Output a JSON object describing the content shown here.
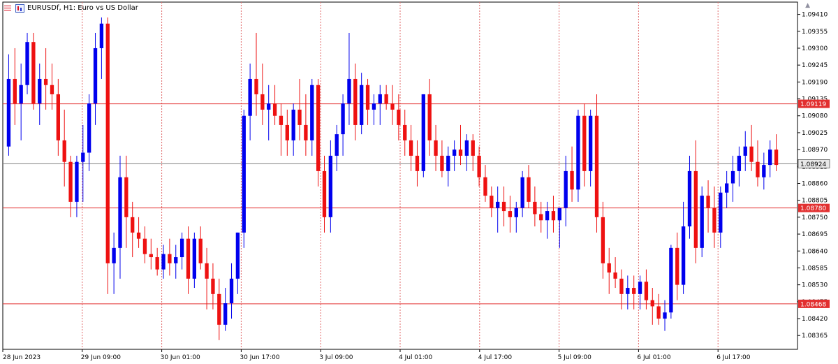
{
  "window": {
    "title": "EURUSDf, H1:  Euro vs US Dollar",
    "icons": [
      "candle-menu-icon",
      "chart-properties-icon",
      "scroll-end-arrow-icon"
    ]
  },
  "colors": {
    "bull": "#0000ee",
    "bear": "#ee1111",
    "grid": "#e26a6a",
    "level": "#e23030",
    "current": "#808080",
    "axis": "#000000"
  },
  "chart_data": {
    "type": "candlestick",
    "symbol": "EURUSDf",
    "timeframe": "H1",
    "ylim": [
      1.0832,
      1.0945
    ],
    "price_ticks": [
      "1.09410",
      "1.09355",
      "1.09300",
      "1.09245",
      "1.09190",
      "1.09135",
      "1.09080",
      "1.09025",
      "1.08970",
      "1.08915",
      "1.08860",
      "1.08805",
      "1.08750",
      "1.08695",
      "1.08640",
      "1.08585",
      "1.08530",
      "1.08475",
      "1.08420",
      "1.08365"
    ],
    "time_ticks": [
      "28 Jun 2023",
      "29 Jun 09:00",
      "30 Jun 01:00",
      "30 Jun 17:00",
      "3 Jul 09:00",
      "4 Jul 01:00",
      "4 Jul 17:00",
      "5 Jul 09:00",
      "6 Jul 01:00",
      "6 Jul 17:00"
    ],
    "price_levels": [
      {
        "label": "1.09119",
        "price": 1.09119
      },
      {
        "label": "1.08780",
        "price": 1.0878
      },
      {
        "label": "1.08468",
        "price": 1.08468
      }
    ],
    "current_price": {
      "label": "1.08924",
      "price": 1.08924
    },
    "ohlc": [
      [
        1.0898,
        1.0928,
        1.0895,
        1.092
      ],
      [
        1.092,
        1.093,
        1.0905,
        1.0912
      ],
      [
        1.0912,
        1.0925,
        1.09,
        1.0918
      ],
      [
        1.0918,
        1.0935,
        1.0915,
        1.0932
      ],
      [
        1.0932,
        1.0935,
        1.091,
        1.0912
      ],
      [
        1.0912,
        1.0925,
        1.0905,
        1.092
      ],
      [
        1.092,
        1.093,
        1.091,
        1.0918
      ],
      [
        1.0918,
        1.0925,
        1.091,
        1.0915
      ],
      [
        1.0915,
        1.092,
        1.0895,
        1.09
      ],
      [
        1.09,
        1.091,
        1.0885,
        1.0893
      ],
      [
        1.0893,
        1.0895,
        1.0875,
        1.088
      ],
      [
        1.088,
        1.0895,
        1.0875,
        1.0893
      ],
      [
        1.0893,
        1.0905,
        1.088,
        1.0896
      ],
      [
        1.0896,
        1.0915,
        1.089,
        1.0912
      ],
      [
        1.0912,
        1.0935,
        1.0905,
        1.093
      ],
      [
        1.093,
        1.094,
        1.092,
        1.0938
      ],
      [
        1.0938,
        1.094,
        1.085,
        1.086
      ],
      [
        1.086,
        1.087,
        1.085,
        1.0865
      ],
      [
        1.0865,
        1.0895,
        1.0855,
        1.0888
      ],
      [
        1.0888,
        1.0895,
        1.0865,
        1.0875
      ],
      [
        1.0875,
        1.088,
        1.0862,
        1.087
      ],
      [
        1.087,
        1.0875,
        1.0865,
        1.0868
      ],
      [
        1.0868,
        1.0872,
        1.086,
        1.0863
      ],
      [
        1.0863,
        1.0868,
        1.0858,
        1.0862
      ],
      [
        1.0862,
        1.0865,
        1.0856,
        1.0858
      ],
      [
        1.0858,
        1.0866,
        1.0855,
        1.0863
      ],
      [
        1.0863,
        1.0868,
        1.0856,
        1.086
      ],
      [
        1.086,
        1.0866,
        1.0855,
        1.0862
      ],
      [
        1.0862,
        1.087,
        1.0858,
        1.0868
      ],
      [
        1.0868,
        1.0872,
        1.085,
        1.0855
      ],
      [
        1.0855,
        1.087,
        1.0852,
        1.0868
      ],
      [
        1.0868,
        1.0872,
        1.0858,
        1.086
      ],
      [
        1.086,
        1.0865,
        1.0845,
        1.0855
      ],
      [
        1.0855,
        1.086,
        1.0845,
        1.085
      ],
      [
        1.085,
        1.0855,
        1.0835,
        1.084
      ],
      [
        1.084,
        1.0852,
        1.0838,
        1.0847
      ],
      [
        1.0847,
        1.086,
        1.0842,
        1.0855
      ],
      [
        1.0855,
        1.087,
        1.085,
        1.087
      ],
      [
        1.087,
        1.091,
        1.0865,
        1.0908
      ],
      [
        1.0908,
        1.0925,
        1.09,
        1.092
      ],
      [
        1.092,
        1.0935,
        1.0908,
        1.0915
      ],
      [
        1.0915,
        1.0925,
        1.0905,
        1.091
      ],
      [
        1.091,
        1.0918,
        1.09,
        1.0912
      ],
      [
        1.0912,
        1.0918,
        1.0905,
        1.0908
      ],
      [
        1.0908,
        1.0912,
        1.0895,
        1.0905
      ],
      [
        1.0905,
        1.091,
        1.0895,
        1.09
      ],
      [
        1.09,
        1.0912,
        1.0895,
        1.091
      ],
      [
        1.091,
        1.092,
        1.09,
        1.0905
      ],
      [
        1.0905,
        1.0915,
        1.0895,
        1.09
      ],
      [
        1.09,
        1.092,
        1.0895,
        1.0918
      ],
      [
        1.0918,
        1.092,
        1.0885,
        1.089
      ],
      [
        1.089,
        1.0895,
        1.087,
        1.0875
      ],
      [
        1.0875,
        1.09,
        1.087,
        1.0895
      ],
      [
        1.0895,
        1.0905,
        1.089,
        1.0902
      ],
      [
        1.0902,
        1.0915,
        1.0895,
        1.0912
      ],
      [
        1.0912,
        1.0935,
        1.0905,
        1.092
      ],
      [
        1.092,
        1.0925,
        1.09,
        1.0905
      ],
      [
        1.0905,
        1.0922,
        1.0902,
        1.0918
      ],
      [
        1.0918,
        1.092,
        1.0905,
        1.091
      ],
      [
        1.091,
        1.0915,
        1.0905,
        1.0912
      ],
      [
        1.0912,
        1.0918,
        1.0905,
        1.0915
      ],
      [
        1.0915,
        1.0918,
        1.091,
        1.0912
      ],
      [
        1.0912,
        1.0918,
        1.0905,
        1.091
      ],
      [
        1.091,
        1.0915,
        1.09,
        1.0905
      ],
      [
        1.0905,
        1.091,
        1.0895,
        1.09
      ],
      [
        1.09,
        1.0905,
        1.089,
        1.0895
      ],
      [
        1.0895,
        1.09,
        1.0885,
        1.089
      ],
      [
        1.089,
        1.0915,
        1.0888,
        1.0915
      ],
      [
        1.0915,
        1.092,
        1.0895,
        1.09
      ],
      [
        1.09,
        1.0905,
        1.089,
        1.0895
      ],
      [
        1.0895,
        1.09,
        1.0888,
        1.089
      ],
      [
        1.089,
        1.0898,
        1.0885,
        1.0895
      ],
      [
        1.0895,
        1.09,
        1.089,
        1.0897
      ],
      [
        1.0897,
        1.0905,
        1.0892,
        1.0895
      ],
      [
        1.0895,
        1.0902,
        1.089,
        1.09
      ],
      [
        1.09,
        1.0902,
        1.089,
        1.0895
      ],
      [
        1.0895,
        1.0898,
        1.0885,
        1.0888
      ],
      [
        1.0888,
        1.0892,
        1.088,
        1.0882
      ],
      [
        1.0882,
        1.0885,
        1.0875,
        1.0878
      ],
      [
        1.0878,
        1.0885,
        1.087,
        1.088
      ],
      [
        1.088,
        1.0885,
        1.0872,
        1.0877
      ],
      [
        1.0877,
        1.0882,
        1.087,
        1.0875
      ],
      [
        1.0875,
        1.088,
        1.087,
        1.0878
      ],
      [
        1.0878,
        1.089,
        1.0875,
        1.0888
      ],
      [
        1.0888,
        1.0892,
        1.0878,
        1.088
      ],
      [
        1.088,
        1.0885,
        1.0872,
        1.0876
      ],
      [
        1.0876,
        1.088,
        1.087,
        1.0874
      ],
      [
        1.0874,
        1.088,
        1.0868,
        1.0877
      ],
      [
        1.0877,
        1.0882,
        1.087,
        1.0874
      ],
      [
        1.0874,
        1.0878,
        1.0865,
        1.0878
      ],
      [
        1.0878,
        1.0895,
        1.0872,
        1.089
      ],
      [
        1.089,
        1.0898,
        1.088,
        1.0884
      ],
      [
        1.0884,
        1.091,
        1.088,
        1.0908
      ],
      [
        1.0908,
        1.0912,
        1.0885,
        1.089
      ],
      [
        1.089,
        1.091,
        1.0885,
        1.0908
      ],
      [
        1.0908,
        1.0915,
        1.087,
        1.0875
      ],
      [
        1.0875,
        1.088,
        1.0855,
        1.086
      ],
      [
        1.086,
        1.0865,
        1.085,
        1.0857
      ],
      [
        1.0857,
        1.0862,
        1.0852,
        1.0855
      ],
      [
        1.0855,
        1.0858,
        1.0845,
        1.085
      ],
      [
        1.085,
        1.0856,
        1.0845,
        1.0852
      ],
      [
        1.0852,
        1.0856,
        1.0845,
        1.085
      ],
      [
        1.085,
        1.0856,
        1.0845,
        1.0854
      ],
      [
        1.0854,
        1.0858,
        1.0845,
        1.0848
      ],
      [
        1.0848,
        1.0852,
        1.084,
        1.0846
      ],
      [
        1.0846,
        1.085,
        1.084,
        1.0842
      ],
      [
        1.0842,
        1.0848,
        1.0838,
        1.0844
      ],
      [
        1.0844,
        1.0866,
        1.0842,
        1.0865
      ],
      [
        1.0865,
        1.087,
        1.0848,
        1.0853
      ],
      [
        1.0853,
        1.088,
        1.085,
        1.0872
      ],
      [
        1.0872,
        1.0895,
        1.0868,
        1.089
      ],
      [
        1.089,
        1.09,
        1.086,
        1.0865
      ],
      [
        1.0865,
        1.0885,
        1.0862,
        1.0882
      ],
      [
        1.0882,
        1.0887,
        1.087,
        1.0878
      ],
      [
        1.0878,
        1.0885,
        1.0865,
        1.087
      ],
      [
        1.087,
        1.0885,
        1.0865,
        1.0883
      ],
      [
        1.0883,
        1.089,
        1.0878,
        1.0886
      ],
      [
        1.0886,
        1.0895,
        1.088,
        1.089
      ],
      [
        1.089,
        1.0898,
        1.0885,
        1.0895
      ],
      [
        1.0895,
        1.0903,
        1.089,
        1.0898
      ],
      [
        1.0898,
        1.0905,
        1.089,
        1.0893
      ],
      [
        1.0893,
        1.09,
        1.0885,
        1.0888
      ],
      [
        1.0888,
        1.0896,
        1.0884,
        1.0892
      ],
      [
        1.0892,
        1.09,
        1.0888,
        1.0897
      ],
      [
        1.0897,
        1.0902,
        1.089,
        1.0892
      ]
    ]
  }
}
